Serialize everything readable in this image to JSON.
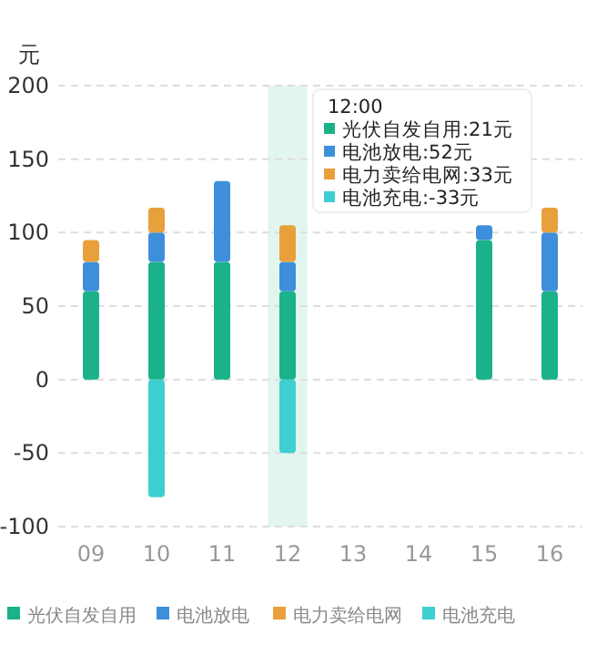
{
  "chart_data": {
    "type": "bar",
    "stacked": true,
    "ylabel": "元",
    "categories": [
      "09",
      "10",
      "11",
      "12",
      "13",
      "14",
      "15",
      "16"
    ],
    "series": [
      {
        "name": "光伏自发自用",
        "color": "#1bb28a",
        "values": [
          60,
          80,
          80,
          60,
          null,
          null,
          95,
          60
        ]
      },
      {
        "name": "电池放电",
        "color": "#3d8fdb",
        "values": [
          20,
          20,
          55,
          20,
          null,
          null,
          10,
          40
        ]
      },
      {
        "name": "电力卖给电网",
        "color": "#e8a03a",
        "values": [
          15,
          17,
          null,
          25,
          null,
          null,
          null,
          17
        ]
      },
      {
        "name": "电池充电",
        "color": "#3ecfd0",
        "values": [
          null,
          -80,
          null,
          -50,
          null,
          null,
          null,
          null
        ]
      }
    ],
    "ylim": [
      -100,
      200
    ],
    "yticks": [
      -100,
      -50,
      0,
      50,
      100,
      150,
      200
    ],
    "grid": "y",
    "legend": "bottom",
    "bands": [
      {
        "axis": "x",
        "from": "12",
        "to": "12",
        "color": "#e3f5ef"
      }
    ],
    "annotations": [
      "12:00",
      "光伏自发自用:21元",
      "电池放电:52元",
      "电力卖给电网:33元",
      "电池充电:-33元"
    ]
  }
}
